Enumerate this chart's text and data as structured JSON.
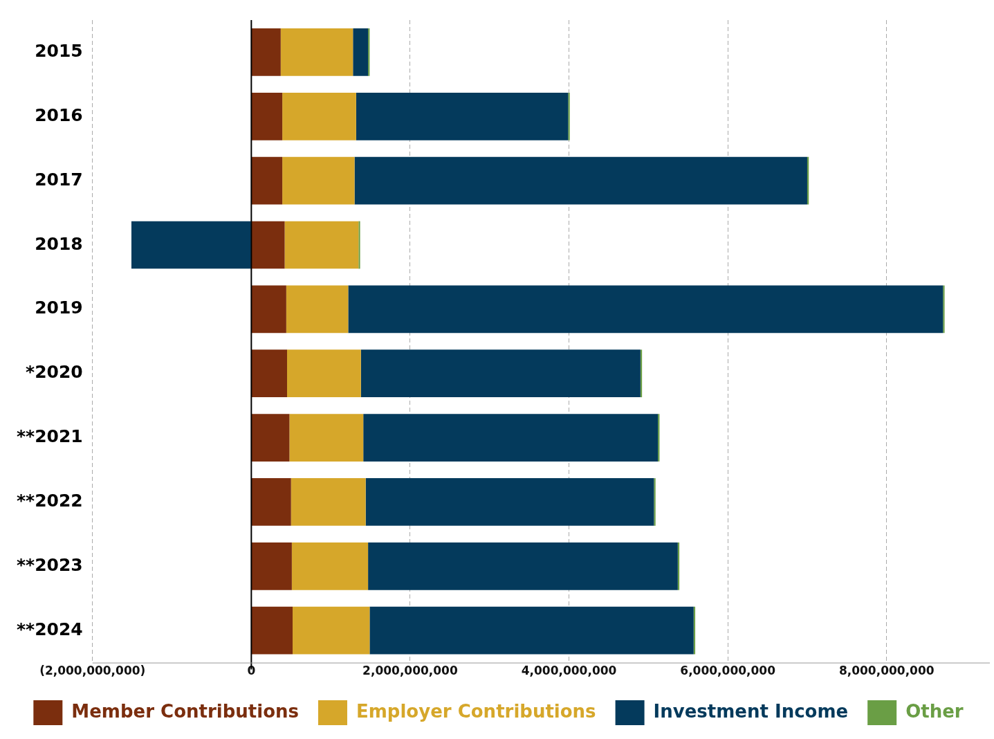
{
  "chart_data": {
    "type": "bar",
    "orientation": "horizontal",
    "stacked": true,
    "categories": [
      "2015",
      "2016",
      "2017",
      "2018",
      "2019",
      "*2020",
      "**2021",
      "**2022",
      "**2023",
      "**2024"
    ],
    "series": [
      {
        "name": "Member Contributions",
        "color": "#7b2e0e",
        "values": [
          370000000.0,
          390000000.0,
          390000000.0,
          420000000.0,
          440000000.0,
          450000000.0,
          480000000.0,
          500000000.0,
          510000000.0,
          520000000.0
        ]
      },
      {
        "name": "Employer Contributions",
        "color": "#d6a72a",
        "values": [
          910000000.0,
          930000000.0,
          910000000.0,
          930000000.0,
          780000000.0,
          930000000.0,
          930000000.0,
          940000000.0,
          960000000.0,
          970000000.0
        ]
      },
      {
        "name": "Investment Income",
        "color": "#043a5c",
        "values": [
          190000000.0,
          2670000000.0,
          5700000000.0,
          -1510000000.0,
          7490000000.0,
          3520000000.0,
          3710000000.0,
          3630000000.0,
          3900000000.0,
          4080000000.0
        ]
      },
      {
        "name": "Other",
        "color": "#6a9e45",
        "values": [
          20000000.0,
          20000000.0,
          20000000.0,
          20000000.0,
          20000000.0,
          20000000.0,
          20000000.0,
          20000000.0,
          20000000.0,
          20000000.0
        ]
      }
    ],
    "xlim": [
      -2000000000,
      9300000000
    ],
    "xticks": [
      {
        "value": -2000000000,
        "label": "(2,000,000,000)"
      },
      0,
      {
        "value": 2000000000,
        "label": "2,000,000,000"
      },
      {
        "value": 4000000000,
        "label": "4,000,000,000"
      },
      {
        "value": 6000000000,
        "label": "6,000,000,000"
      },
      {
        "value": 8000000000,
        "label": "8,000,000,000"
      }
    ],
    "grid": "x",
    "legend": "bottom"
  }
}
